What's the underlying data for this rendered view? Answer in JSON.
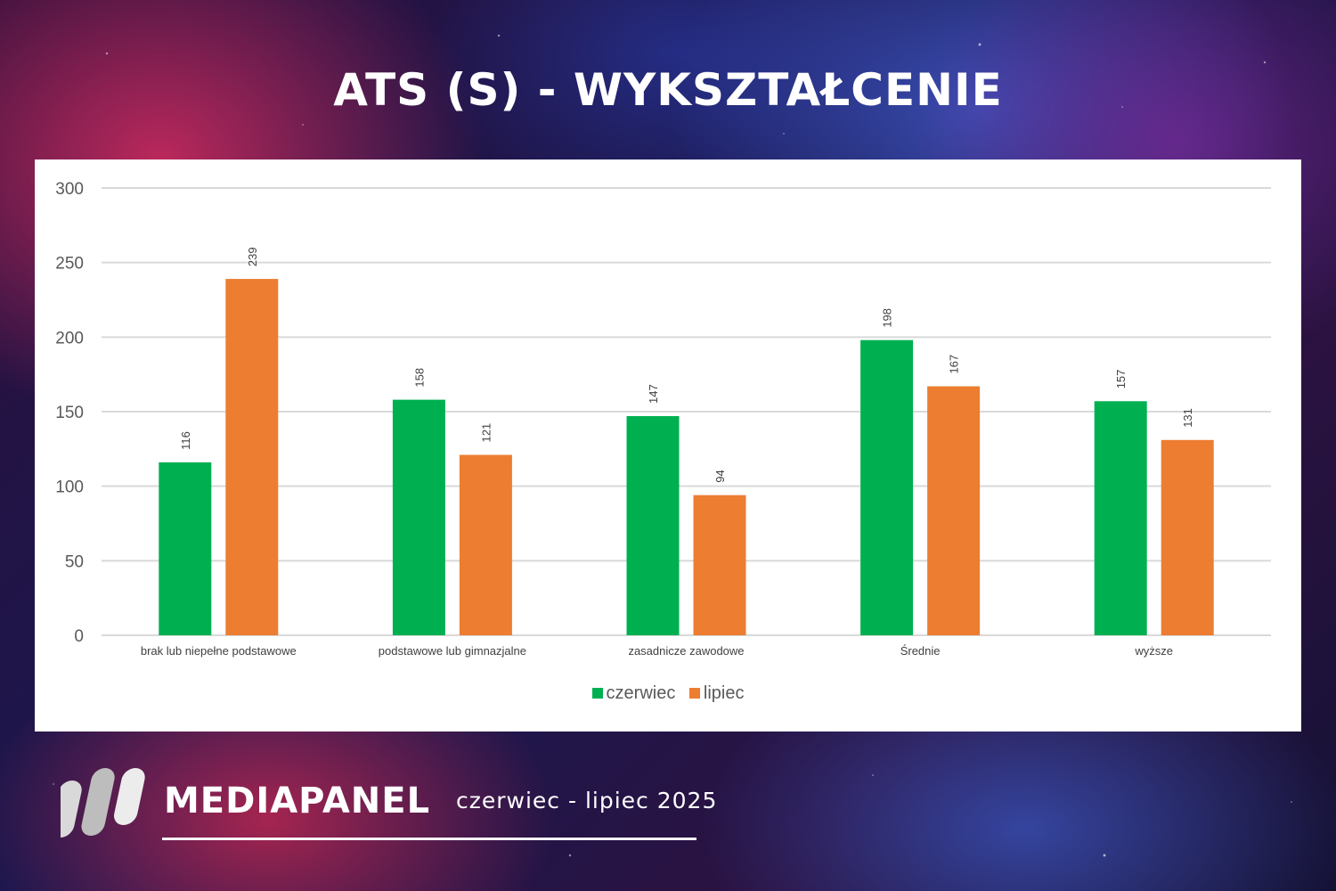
{
  "header": {
    "title": "ATS (S) - WYKSZTAŁCENIE"
  },
  "footer": {
    "brand": "MEDIAPANEL",
    "period": "czerwiec - lipiec 2025"
  },
  "colors": {
    "series_czerwiec": "#00b050",
    "series_lipiec": "#ed7d31",
    "gridline": "#d9d9d9",
    "panel_background": "#ffffff"
  },
  "chart_data": {
    "type": "bar",
    "categories": [
      "brak lub niepełne podstawowe",
      "podstawowe lub gimnazjalne",
      "zasadnicze zawodowe",
      "Średnie",
      "wyższe"
    ],
    "series": [
      {
        "name": "czerwiec",
        "values": [
          116,
          158,
          147,
          198,
          157
        ]
      },
      {
        "name": "lipiec",
        "values": [
          239,
          121,
          94,
          167,
          131
        ]
      }
    ],
    "ylim": [
      0,
      300
    ],
    "yticks": [
      "0",
      "50",
      "100",
      "150",
      "200",
      "250",
      "300"
    ],
    "grid": true,
    "legend_position": "bottom",
    "data_labels": true
  }
}
